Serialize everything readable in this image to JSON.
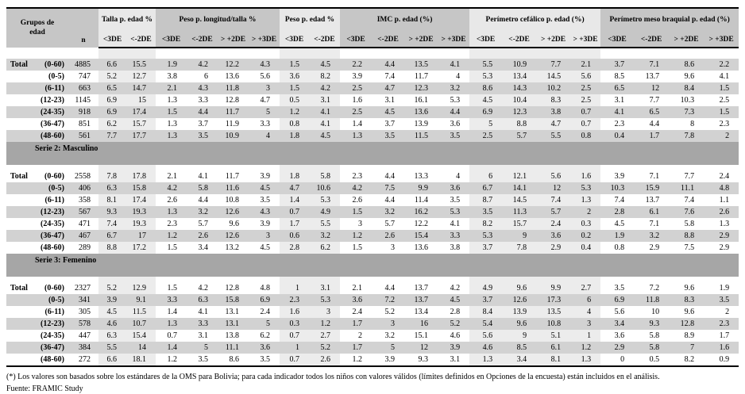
{
  "colors": {
    "header_dark": "#c6c6c6",
    "header_light": "#e8e8e8",
    "row_stripe_gray": "#d2d2d2",
    "column_band_light": "#ececec",
    "section_band": "#a6a6a6",
    "border": "#000000"
  },
  "header": {
    "group_label": "Grupos de edad",
    "n_label": "n",
    "groups": [
      {
        "label": "Talla p. edad %",
        "shade": "light",
        "subcols": [
          "<3DE",
          "<-2DE"
        ]
      },
      {
        "label": "Peso p. longitud/talla %",
        "shade": "dark",
        "subcols": [
          "<3DE",
          "<-2DE",
          "> +2DE",
          "> +3DE"
        ]
      },
      {
        "label": "Peso p. edad %",
        "shade": "light",
        "subcols": [
          "<3DE",
          "<-2DE"
        ]
      },
      {
        "label": "IMC p. edad (%)",
        "shade": "dark",
        "subcols": [
          "<3DE",
          "<-2DE",
          "> +2DE",
          "> +3DE"
        ]
      },
      {
        "label": "Perímetro cefálico p. edad (%)",
        "shade": "light",
        "subcols": [
          "<3DE",
          "<-2DE",
          "> +2DE",
          "> +3DE"
        ]
      },
      {
        "label": "Perímetro meso braquial p. edad (%)",
        "shade": "dark",
        "subcols": [
          "<3DE",
          "<-2DE",
          "> +2DE",
          "> +3DE"
        ]
      }
    ]
  },
  "sections": [
    {
      "title": "",
      "rows": [
        {
          "total_label": "Total",
          "age": "(0-60)",
          "n": 4885,
          "values": [
            6.6,
            15.5,
            1.9,
            4.2,
            12.2,
            4.3,
            1.5,
            4.5,
            2.2,
            4.4,
            13.5,
            4.1,
            5.5,
            10.9,
            7.7,
            2.1,
            3.7,
            7.1,
            8.6,
            2.2
          ]
        },
        {
          "total_label": "",
          "age": "(0-5)",
          "n": 747,
          "values": [
            5.2,
            12.7,
            3.8,
            6,
            13.6,
            5.6,
            3.6,
            8.2,
            3.9,
            7.4,
            11.7,
            4,
            5.3,
            13.4,
            14.5,
            5.6,
            8.5,
            13.7,
            9.6,
            4.1
          ]
        },
        {
          "total_label": "",
          "age": "(6-11)",
          "n": 663,
          "values": [
            6.5,
            14.7,
            2.1,
            4.3,
            11.8,
            3,
            1.5,
            4.2,
            2.5,
            4.7,
            12.3,
            3.2,
            8.6,
            14.3,
            10.2,
            2.5,
            6.5,
            12,
            8.4,
            1.5
          ]
        },
        {
          "total_label": "",
          "age": "(12-23)",
          "n": 1145,
          "values": [
            6.9,
            15,
            1.3,
            3.3,
            12.8,
            4.7,
            0.5,
            3.1,
            1.6,
            3.1,
            16.1,
            5.3,
            4.5,
            10.4,
            8.3,
            2.5,
            3.1,
            7.7,
            10.3,
            2.5
          ]
        },
        {
          "total_label": "",
          "age": "(24-35)",
          "n": 918,
          "values": [
            6.9,
            17.4,
            1.5,
            4.4,
            11.7,
            5,
            1.2,
            4.1,
            2.5,
            4.5,
            13.6,
            4.4,
            6.9,
            12.3,
            3.8,
            0.7,
            4.1,
            6.5,
            7.3,
            1.5
          ]
        },
        {
          "total_label": "",
          "age": "(36-47)",
          "n": 851,
          "values": [
            6.2,
            15.7,
            1.3,
            3.7,
            11.9,
            3.3,
            0.8,
            4.1,
            1.4,
            3.7,
            13.9,
            3.6,
            5,
            8.8,
            4.7,
            0.7,
            2.3,
            4.4,
            8,
            2.3
          ]
        },
        {
          "total_label": "",
          "age": "(48-60)",
          "n": 561,
          "values": [
            7.7,
            17.7,
            1.3,
            3.5,
            10.9,
            4,
            1.8,
            4.5,
            1.3,
            3.5,
            11.5,
            3.5,
            2.5,
            5.7,
            5.5,
            0.8,
            0.4,
            1.7,
            7.8,
            2
          ]
        }
      ]
    },
    {
      "title": "Serie 2: Masculino",
      "rows": [
        {
          "total_label": "Total",
          "age": "(0-60)",
          "n": 2558,
          "values": [
            7.8,
            17.8,
            2.1,
            4.1,
            11.7,
            3.9,
            1.8,
            5.8,
            2.3,
            4.4,
            13.3,
            4,
            6,
            12.1,
            5.6,
            1.6,
            3.9,
            7.1,
            7.7,
            2.4
          ]
        },
        {
          "total_label": "",
          "age": "(0-5)",
          "n": 406,
          "values": [
            6.3,
            15.8,
            4.2,
            5.8,
            11.6,
            4.5,
            4.7,
            10.6,
            4.2,
            7.5,
            9.9,
            3.6,
            6.7,
            14.1,
            12,
            5.3,
            10.3,
            15.9,
            11.1,
            4.8
          ]
        },
        {
          "total_label": "",
          "age": "(6-11)",
          "n": 358,
          "values": [
            8.1,
            17.4,
            2.6,
            4.4,
            10.8,
            3.5,
            1.4,
            5.3,
            2.6,
            4.4,
            11.4,
            3.5,
            8.7,
            14.5,
            7.4,
            1.3,
            7.4,
            13.7,
            7.4,
            1.1
          ]
        },
        {
          "total_label": "",
          "age": "(12-23)",
          "n": 567,
          "values": [
            9.3,
            19.3,
            1.3,
            3.2,
            12.6,
            4.3,
            0.7,
            4.9,
            1.5,
            3.2,
            16.2,
            5.3,
            3.5,
            11.3,
            5.7,
            2,
            2.8,
            6.1,
            7.6,
            2.6
          ]
        },
        {
          "total_label": "",
          "age": "(24-35)",
          "n": 471,
          "values": [
            7.4,
            19.3,
            2.3,
            5.7,
            9.6,
            3.9,
            1.7,
            5.5,
            3,
            5.7,
            12.2,
            4.1,
            8.2,
            15.7,
            2.4,
            0.3,
            4.5,
            7.1,
            5.8,
            1.3
          ]
        },
        {
          "total_label": "",
          "age": "(36-47)",
          "n": 467,
          "values": [
            6.7,
            17,
            1.2,
            2.6,
            12.6,
            3,
            0.6,
            3.2,
            1.2,
            2.6,
            15.4,
            3.3,
            5.3,
            9,
            3.6,
            0.2,
            1.9,
            3.2,
            8.8,
            2.9
          ]
        },
        {
          "total_label": "",
          "age": "(48-60)",
          "n": 289,
          "values": [
            8.8,
            17.2,
            1.5,
            3.4,
            13.2,
            4.5,
            2.8,
            6.2,
            1.5,
            3,
            13.6,
            3.8,
            3.7,
            7.8,
            2.9,
            0.4,
            0.8,
            2.9,
            7.5,
            2.9
          ]
        }
      ]
    },
    {
      "title": "Serie 3: Femenino",
      "rows": [
        {
          "total_label": "Total",
          "age": "(0-60)",
          "n": 2327,
          "values": [
            5.2,
            12.9,
            1.5,
            4.2,
            12.8,
            4.8,
            1,
            3.1,
            2.1,
            4.4,
            13.7,
            4.2,
            4.9,
            9.6,
            9.9,
            2.7,
            3.5,
            7.2,
            9.6,
            1.9
          ]
        },
        {
          "total_label": "",
          "age": "(0-5)",
          "n": 341,
          "values": [
            3.9,
            9.1,
            3.3,
            6.3,
            15.8,
            6.9,
            2.3,
            5.3,
            3.6,
            7.2,
            13.7,
            4.5,
            3.7,
            12.6,
            17.3,
            6,
            6.9,
            11.8,
            8.3,
            3.5
          ]
        },
        {
          "total_label": "",
          "age": "(6-11)",
          "n": 305,
          "values": [
            4.5,
            11.5,
            1.4,
            4.1,
            13.1,
            2.4,
            1.6,
            3,
            2.4,
            5.2,
            13.4,
            2.8,
            8.4,
            13.9,
            13.5,
            4,
            5.6,
            10,
            9.6,
            2
          ]
        },
        {
          "total_label": "",
          "age": "(12-23)",
          "n": 578,
          "values": [
            4.6,
            10.7,
            1.3,
            3.3,
            13.1,
            5,
            0.3,
            1.2,
            1.7,
            3,
            16,
            5.2,
            5.4,
            9.6,
            10.8,
            3,
            3.4,
            9.3,
            12.8,
            2.3
          ]
        },
        {
          "total_label": "",
          "age": "(24-35)",
          "n": 447,
          "values": [
            6.3,
            15.4,
            0.7,
            3.1,
            13.8,
            6.2,
            0.7,
            2.7,
            2,
            3.2,
            15.1,
            4.6,
            5.6,
            9,
            5.1,
            1,
            3.6,
            5.8,
            8.9,
            1.7
          ]
        },
        {
          "total_label": "",
          "age": "(36-47)",
          "n": 384,
          "values": [
            5.5,
            14,
            1.4,
            5,
            11.1,
            3.6,
            1,
            5.2,
            1.7,
            5,
            12,
            3.9,
            4.6,
            8.5,
            6.1,
            1.2,
            2.9,
            5.8,
            7,
            1.6
          ]
        },
        {
          "total_label": "",
          "age": "(48-60)",
          "n": 272,
          "values": [
            6.6,
            18.1,
            1.2,
            3.5,
            8.6,
            3.5,
            0.7,
            2.6,
            1.2,
            3.9,
            9.3,
            3.1,
            1.3,
            3.4,
            8.1,
            1.3,
            0,
            0.5,
            8.2,
            0.9
          ]
        }
      ]
    }
  ],
  "footnotes": {
    "line1": "(*) Los valores son basados sobre los estándares de la OMS para Bolivia; para cada indicador todos los niños con valores válidos (límites definidos en Opciones de la encuesta) están incluidos en el análisis.",
    "line2": "Fuente: FRAMIC Study"
  }
}
